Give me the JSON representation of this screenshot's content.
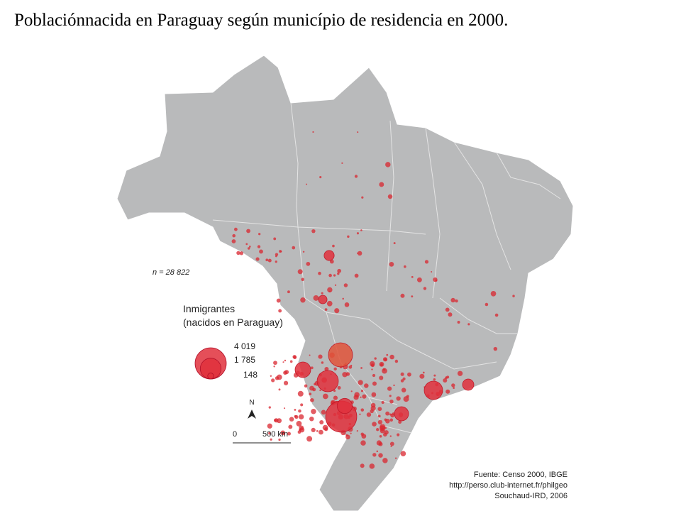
{
  "title": "Poblaciónnacida en Paraguay según município de residencia en 2000.",
  "map": {
    "n_label": "n = 28 822",
    "legend": {
      "title": "Inmigrantes",
      "subtitle": "(nacidos en Paraguay)",
      "items": [
        {
          "value": 4019,
          "label": "4 019"
        },
        {
          "value": 1785,
          "label": "1 785"
        },
        {
          "value": 148,
          "label": "148"
        }
      ]
    },
    "north": "N",
    "scale": {
      "start": "0",
      "end": "500 km"
    },
    "source": [
      "Fuente: Censo 2000, IBGE",
      "http://perso.club-internet.fr/philgeo",
      "Souchaud-IRD, 2006"
    ],
    "circles": [
      4000,
      2400,
      1860,
      1000,
      1400,
      830,
      530,
      950,
      420,
      300
    ]
  }
}
